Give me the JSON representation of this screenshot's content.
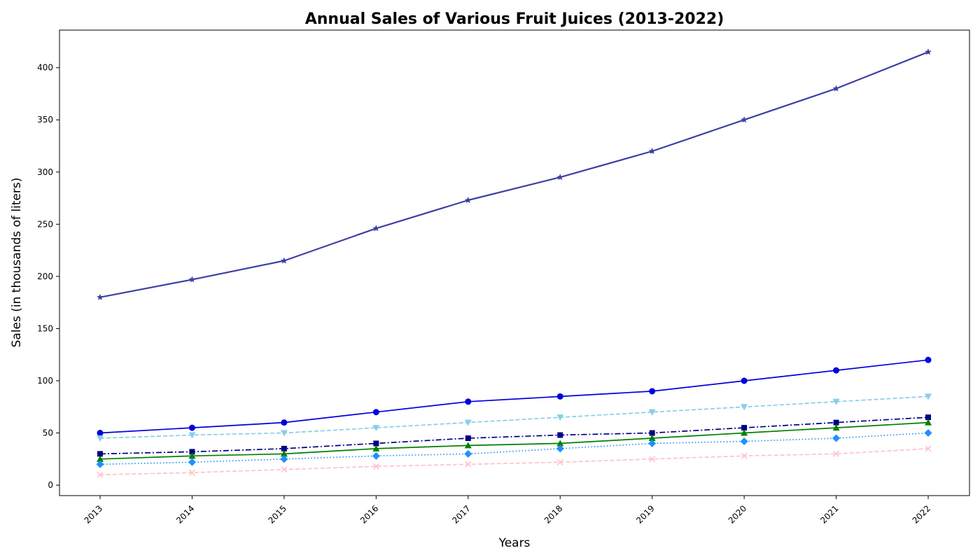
{
  "chart_data": {
    "type": "line",
    "title": "Annual Sales of Various Fruit Juices (2013-2022)",
    "xlabel": "Years",
    "ylabel": "Sales (in thousands of liters)",
    "x": [
      "2013",
      "2014",
      "2015",
      "2016",
      "2017",
      "2018",
      "2019",
      "2020",
      "2021",
      "2022"
    ],
    "yticks": [
      0,
      50,
      100,
      150,
      200,
      250,
      300,
      350,
      400
    ],
    "ylim": [
      -10,
      436
    ],
    "grid": false,
    "legend": "none",
    "series": [
      {
        "values": [
          180,
          197,
          215,
          246,
          273,
          295,
          320,
          350,
          380,
          415
        ],
        "color": "#3f3fa6",
        "marker": "star",
        "dash": "solid",
        "width": 2.2
      },
      {
        "values": [
          50,
          55,
          60,
          70,
          80,
          85,
          90,
          100,
          110,
          120
        ],
        "color": "#0000dd",
        "marker": "circle",
        "dash": "solid",
        "width": 1.7
      },
      {
        "values": [
          45,
          48,
          50,
          55,
          60,
          65,
          70,
          75,
          80,
          85
        ],
        "color": "#87ceeb",
        "marker": "triangle-down",
        "dash": "dashed",
        "width": 1.7
      },
      {
        "values": [
          30,
          32,
          35,
          40,
          45,
          48,
          50,
          55,
          60,
          65
        ],
        "color": "#000080",
        "marker": "square",
        "dash": "dashdot",
        "width": 1.7
      },
      {
        "values": [
          25,
          28,
          30,
          35,
          38,
          40,
          45,
          50,
          55,
          60
        ],
        "color": "#008000",
        "marker": "triangle-up",
        "dash": "solid",
        "width": 1.7
      },
      {
        "values": [
          20,
          22,
          25,
          28,
          30,
          35,
          40,
          42,
          45,
          50
        ],
        "color": "#1e90ff",
        "marker": "diamond",
        "dash": "dotted",
        "width": 1.7
      },
      {
        "values": [
          10,
          12,
          15,
          18,
          20,
          22,
          25,
          28,
          30,
          35
        ],
        "color": "#ffc0cb",
        "marker": "x",
        "dash": "dashed",
        "width": 1.7
      }
    ]
  }
}
